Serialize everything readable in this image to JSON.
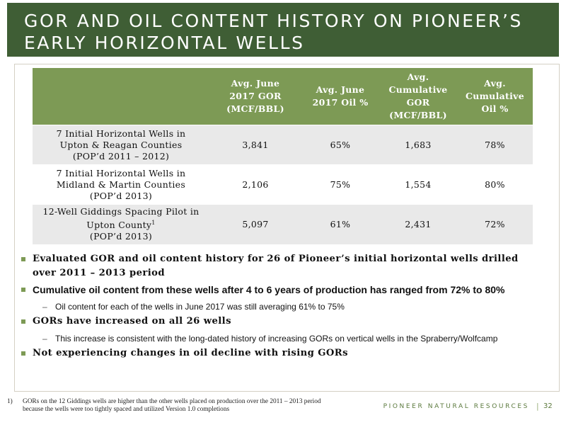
{
  "title": "GOR AND OIL CONTENT HISTORY ON PIONEER’S\nEARLY HORIZONTAL WELLS",
  "table": {
    "headers": [
      "",
      "Avg. June\n2017 GOR\n(MCF/BBL)",
      "Avg. June\n2017 Oil %",
      "Avg.\nCumulative\nGOR\n(MCF/BBL)",
      "Avg.\nCumulative\nOil %"
    ],
    "rows": [
      {
        "label": "7 Initial Horizontal Wells in\nUpton & Reagan Counties\n(POP’d 2011 – 2012)",
        "cells": [
          "3,841",
          "65%",
          "1,683",
          "78%"
        ]
      },
      {
        "label": "7 Initial Horizontal Wells in\nMidland & Martin Counties\n(POP’d 2013)",
        "cells": [
          "2,106",
          "75%",
          "1,554",
          "80%"
        ]
      },
      {
        "label_line1": "12-Well Giddings Spacing Pilot in",
        "label_line2": "Upton County",
        "footnote_mark": "1",
        "label_line3": "(POP’d 2013)",
        "cells": [
          "5,097",
          "61%",
          "2,431",
          "72%"
        ]
      }
    ]
  },
  "bullets": {
    "b1": "Evaluated GOR and oil content history for 26 of Pioneer’s initial horizontal wells drilled over 2011 – 2013 period",
    "b2": "Cumulative oil content from these wells after 4 to 6 years of production has ranged from 72% to 80%",
    "b2_sub": "Oil content for each of the wells in June 2017 was still averaging 61% to 75%",
    "b3": "GORs have increased on all 26 wells",
    "b3_sub": "This increase is consistent with the long-dated history of increasing GORs on vertical wells in the Spraberry/Wolfcamp",
    "b4": "Not experiencing changes in oil decline with rising GORs",
    "sub_dash": "–"
  },
  "footnote": {
    "number": "1)",
    "text": "GORs on the 12 Giddings wells are higher than the other wells placed on production over the 2011 – 2013 period\nbecause the wells were too tightly spaced and utilized Version 1.0 completions"
  },
  "footer": {
    "brand": "PIONEER NATURAL RESOURCES",
    "separator": "|",
    "page_number": "32"
  },
  "colors": {
    "title_bar": "#3f5e35",
    "table_header": "#7d9a55",
    "row_shade": "#e9e9e9",
    "accent": "#7d9a55"
  }
}
